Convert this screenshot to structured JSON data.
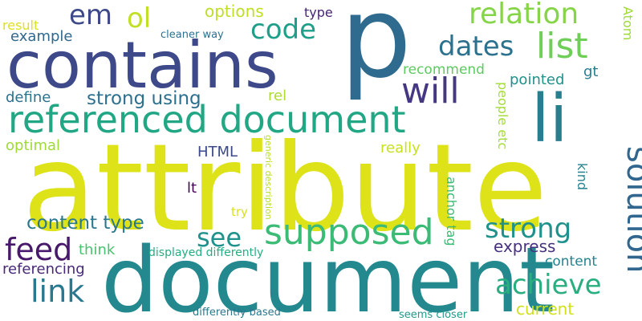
{
  "words": [
    {
      "text": "attribute",
      "color": "#dde318"
    },
    {
      "text": "document",
      "color": "#23898e"
    },
    {
      "text": "contains",
      "color": "#3e4989"
    },
    {
      "text": "p",
      "color": "#2f6b8e"
    },
    {
      "text": "referenced document",
      "color": "#22a785"
    },
    {
      "text": "li",
      "color": "#277f8e"
    },
    {
      "text": "supposed",
      "color": "#3bbb75"
    },
    {
      "text": "solution",
      "color": "#31668e"
    },
    {
      "text": "will",
      "color": "#453781"
    },
    {
      "text": "list",
      "color": "#6ece58"
    },
    {
      "text": "relation",
      "color": "#86d549"
    },
    {
      "text": "em",
      "color": "#3e4989"
    },
    {
      "text": "ol",
      "color": "#c0df25"
    },
    {
      "text": "code",
      "color": "#1f9e89"
    },
    {
      "text": "dates",
      "color": "#2c728e"
    },
    {
      "text": "strong",
      "color": "#21918c"
    },
    {
      "text": "feed",
      "color": "#48186a"
    },
    {
      "text": "link",
      "color": "#2a788e"
    },
    {
      "text": "achieve",
      "color": "#29af7f"
    },
    {
      "text": "see",
      "color": "#20928c"
    },
    {
      "text": "content type",
      "color": "#2a788e"
    },
    {
      "text": "strong using",
      "color": "#2d708e"
    },
    {
      "text": "options",
      "color": "#bddf26"
    },
    {
      "text": "type",
      "color": "#482475"
    },
    {
      "text": "result",
      "color": "#dde318"
    },
    {
      "text": "example",
      "color": "#31688e"
    },
    {
      "text": "cleaner way",
      "color": "#2c728e"
    },
    {
      "text": "Atom",
      "color": "#a0da39"
    },
    {
      "text": "recommend",
      "color": "#5ec962"
    },
    {
      "text": "pointed",
      "color": "#21918c"
    },
    {
      "text": "gt",
      "color": "#277f8e"
    },
    {
      "text": "define",
      "color": "#2c728e"
    },
    {
      "text": "rel",
      "color": "#addc30"
    },
    {
      "text": "people etc",
      "color": "#a5db36"
    },
    {
      "text": "optimal",
      "color": "#a0da39"
    },
    {
      "text": "really",
      "color": "#c8e020"
    },
    {
      "text": "HTML",
      "color": "#3e4989"
    },
    {
      "text": "kind",
      "color": "#26828e"
    },
    {
      "text": "generic description",
      "color": "#b5de2b"
    },
    {
      "text": "anchor tag",
      "color": "#3bbb75"
    },
    {
      "text": "lt",
      "color": "#440154"
    },
    {
      "text": "try",
      "color": "#d8e219"
    },
    {
      "text": "think",
      "color": "#4ac16d"
    },
    {
      "text": "express",
      "color": "#46327e"
    },
    {
      "text": "content",
      "color": "#26828e"
    },
    {
      "text": "displayed differently",
      "color": "#27ad81"
    },
    {
      "text": "referencing",
      "color": "#482878"
    },
    {
      "text": "current",
      "color": "#d0e11c"
    },
    {
      "text": "differently based",
      "color": "#2a788e"
    },
    {
      "text": "seems closer",
      "color": "#1f9a8a"
    }
  ]
}
